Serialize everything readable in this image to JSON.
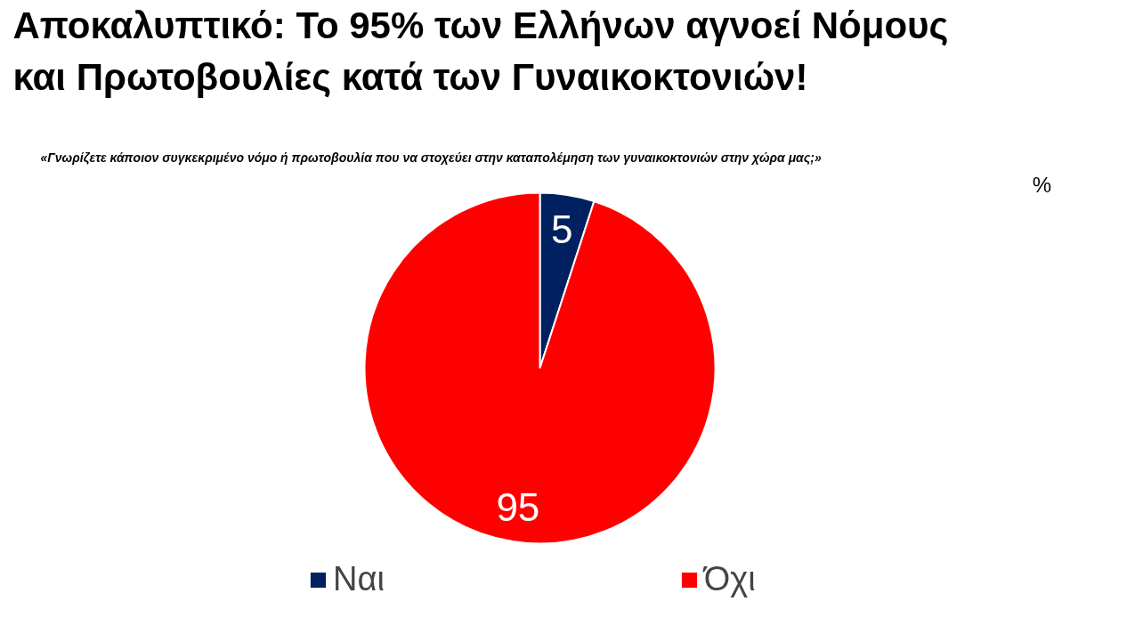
{
  "chart_data": {
    "type": "pie",
    "title": "Αποκαλυπτικό: Το 95% των Ελλήνων αγνοεί Νόμους και Πρωτοβουλίες κατά των Γυναικοκτονιών!",
    "subtitle": "«Γνωρίζετε κάποιον συγκεκριμένο νόμο ή πρωτοβουλία που να στοχεύει στην καταπολέμηση των γυναικοκτονιών στην χώρα μας;»",
    "annotations": [
      "%"
    ],
    "categories": [
      "Ναι",
      "Όχι"
    ],
    "values": [
      5,
      95
    ],
    "colors": [
      "#002060",
      "#ff0000"
    ],
    "data_labels": true,
    "legend": "bottom"
  }
}
